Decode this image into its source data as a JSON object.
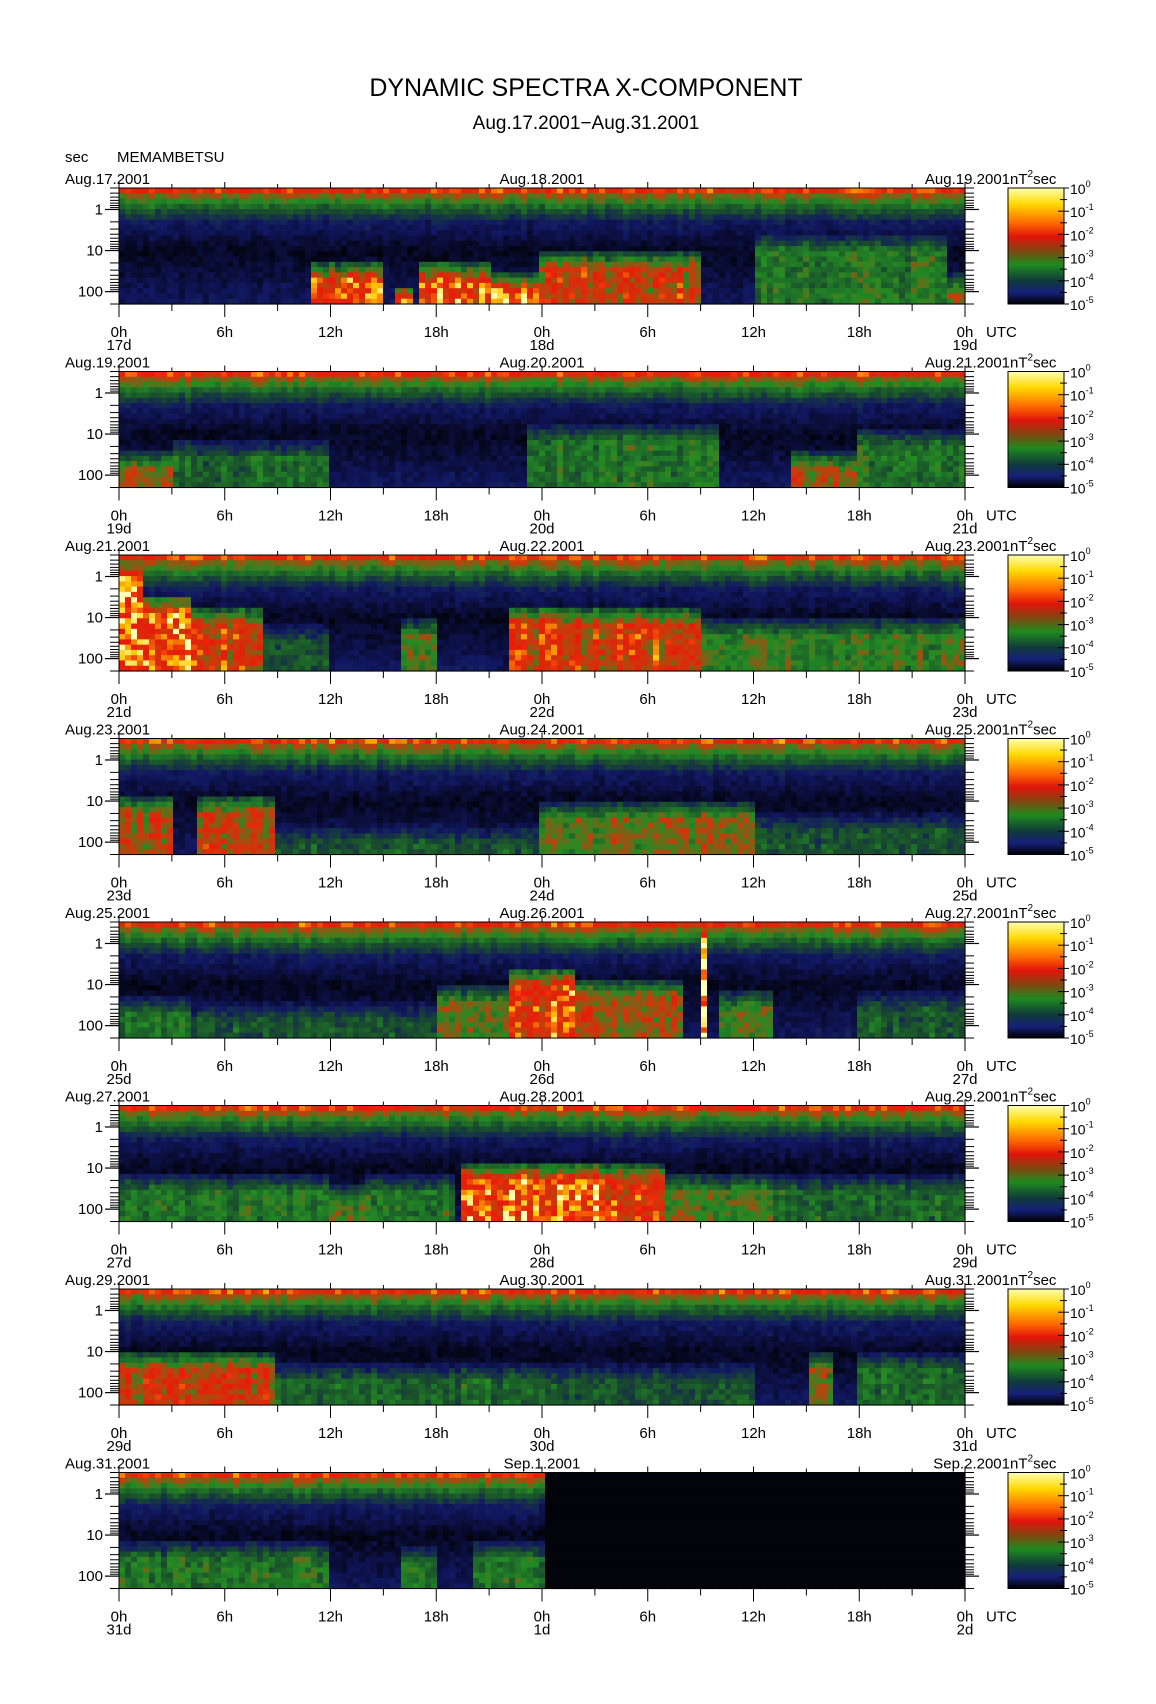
{
  "figure": {
    "title": "DYNAMIC SPECTRA X-COMPONENT",
    "subtitle": "Aug.17.2001−Aug.31.2001",
    "station": "MEMAMBETSU",
    "y_unit": "sec",
    "x_unit": "UTC",
    "colorbar_unit": "nT",
    "colorbar_unit_exp": "2",
    "colorbar_unit_suffix": "sec"
  },
  "colors": {
    "scale": [
      "#000000",
      "#16207a",
      "#1f8a1f",
      "#e0140a",
      "#ffd800",
      "#ffffb0"
    ],
    "no_data": "#050505"
  },
  "chart_data": {
    "type": "heatmap",
    "y_axis": {
      "scale": "log",
      "label": "sec",
      "range": [
        200,
        0.3
      ],
      "tick_labels": [
        "1",
        "10",
        "100"
      ]
    },
    "x_axis": {
      "label": "UTC",
      "tick_labels": [
        "0h",
        "6h",
        "12h",
        "18h",
        "0h",
        "6h",
        "12h",
        "18h",
        "0h"
      ]
    },
    "colorbar": {
      "scale": "log",
      "unit": "nT²sec",
      "tick_labels": [
        {
          "base": "10",
          "exp": "0"
        },
        {
          "base": "10",
          "exp": "-1"
        },
        {
          "base": "10",
          "exp": "-2"
        },
        {
          "base": "10",
          "exp": "-3"
        },
        {
          "base": "10",
          "exp": "-4"
        },
        {
          "base": "10",
          "exp": "-5"
        }
      ]
    },
    "panels": [
      {
        "left_date": "Aug.17.2001",
        "mid_date": "Aug.18.2001",
        "right_date": "Aug.19.2001",
        "day_labels": [
          "17d",
          "18d",
          "19d"
        ],
        "data_end_hour": 48,
        "events": [
          [
            11,
            15,
            0.85,
            0.65
          ],
          [
            15.5,
            16.8,
            1.0,
            0.85
          ],
          [
            17,
            21,
            0.85,
            0.65
          ],
          [
            21,
            24,
            0.9,
            0.75
          ],
          [
            24,
            33,
            0.7,
            0.55
          ],
          [
            36,
            47,
            0.45,
            0.4
          ],
          [
            47,
            48,
            0.6,
            0.75
          ]
        ]
      },
      {
        "left_date": "Aug.19.2001",
        "mid_date": "Aug.20.2001",
        "right_date": "Aug.21.2001",
        "day_labels": [
          "19d",
          "20d",
          "21d"
        ],
        "data_end_hour": 48,
        "events": [
          [
            0,
            3,
            0.6,
            0.7
          ],
          [
            3,
            12,
            0.4,
            0.6
          ],
          [
            23,
            34,
            0.45,
            0.45
          ],
          [
            38,
            42,
            0.65,
            0.7
          ],
          [
            42,
            48,
            0.45,
            0.5
          ]
        ]
      },
      {
        "left_date": "Aug.21.2001",
        "mid_date": "Aug.22.2001",
        "right_date": "Aug.23.2001",
        "day_labels": [
          "21d",
          "22d",
          "23d"
        ],
        "data_end_hour": 48,
        "events": [
          [
            0,
            1.2,
            1.0,
            0.05
          ],
          [
            1.2,
            4,
            0.85,
            0.35
          ],
          [
            4,
            8,
            0.75,
            0.45
          ],
          [
            8,
            12,
            0.35,
            0.6
          ],
          [
            16,
            18,
            0.55,
            0.55
          ],
          [
            22,
            33,
            0.75,
            0.45
          ],
          [
            33,
            48,
            0.5,
            0.55
          ]
        ]
      },
      {
        "left_date": "Aug.23.2001",
        "mid_date": "Aug.24.2001",
        "right_date": "Aug.25.2001",
        "day_labels": [
          "23d",
          "24d",
          "25d"
        ],
        "data_end_hour": 48,
        "events": [
          [
            0,
            3,
            0.65,
            0.5
          ],
          [
            4.5,
            9,
            0.7,
            0.5
          ],
          [
            9,
            24,
            0.35,
            0.75
          ],
          [
            24,
            28,
            0.55,
            0.55
          ],
          [
            28,
            36,
            0.6,
            0.55
          ],
          [
            36,
            48,
            0.35,
            0.65
          ]
        ]
      },
      {
        "left_date": "Aug.25.2001",
        "mid_date": "Aug.26.2001",
        "right_date": "Aug.27.2001",
        "day_labels": [
          "25d",
          "26d",
          "27d"
        ],
        "data_end_hour": 48,
        "events": [
          [
            0,
            4,
            0.45,
            0.65
          ],
          [
            4,
            18,
            0.35,
            0.7
          ],
          [
            18,
            22,
            0.55,
            0.55
          ],
          [
            22,
            26,
            0.8,
            0.4
          ],
          [
            26,
            32,
            0.65,
            0.5
          ],
          [
            32.9,
            33.2,
            1.0,
            0.0
          ],
          [
            34,
            37,
            0.55,
            0.6
          ],
          [
            42,
            48,
            0.35,
            0.6
          ]
        ]
      },
      {
        "left_date": "Aug.27.2001",
        "mid_date": "Aug.28.2001",
        "right_date": "Aug.29.2001",
        "day_labels": [
          "27d",
          "28d",
          "29d"
        ],
        "data_end_hour": 48,
        "events": [
          [
            0,
            12,
            0.45,
            0.6
          ],
          [
            12,
            14,
            0.55,
            0.7
          ],
          [
            14,
            19,
            0.45,
            0.6
          ],
          [
            19.5,
            27.5,
            0.9,
            0.5
          ],
          [
            27.5,
            31,
            0.75,
            0.5
          ],
          [
            31,
            37,
            0.55,
            0.6
          ],
          [
            37,
            48,
            0.4,
            0.6
          ]
        ]
      },
      {
        "left_date": "Aug.29.2001",
        "mid_date": "Aug.30.2001",
        "right_date": "Aug.31.2001",
        "day_labels": [
          "29d",
          "30d",
          "31d"
        ],
        "data_end_hour": 48,
        "events": [
          [
            0,
            9,
            0.7,
            0.55
          ],
          [
            9,
            24,
            0.4,
            0.65
          ],
          [
            24,
            36,
            0.35,
            0.65
          ],
          [
            39,
            40.5,
            0.6,
            0.55
          ],
          [
            42,
            48,
            0.4,
            0.55
          ]
        ]
      },
      {
        "left_date": "Aug.31.2001",
        "mid_date": "Sep.1.2001",
        "right_date": "Sep.2.2001",
        "day_labels": [
          "31d",
          "1d",
          "2d"
        ],
        "data_end_hour": 24,
        "events": [
          [
            0,
            12,
            0.45,
            0.6
          ],
          [
            16,
            18,
            0.45,
            0.65
          ],
          [
            20,
            24,
            0.45,
            0.6
          ]
        ]
      }
    ]
  }
}
